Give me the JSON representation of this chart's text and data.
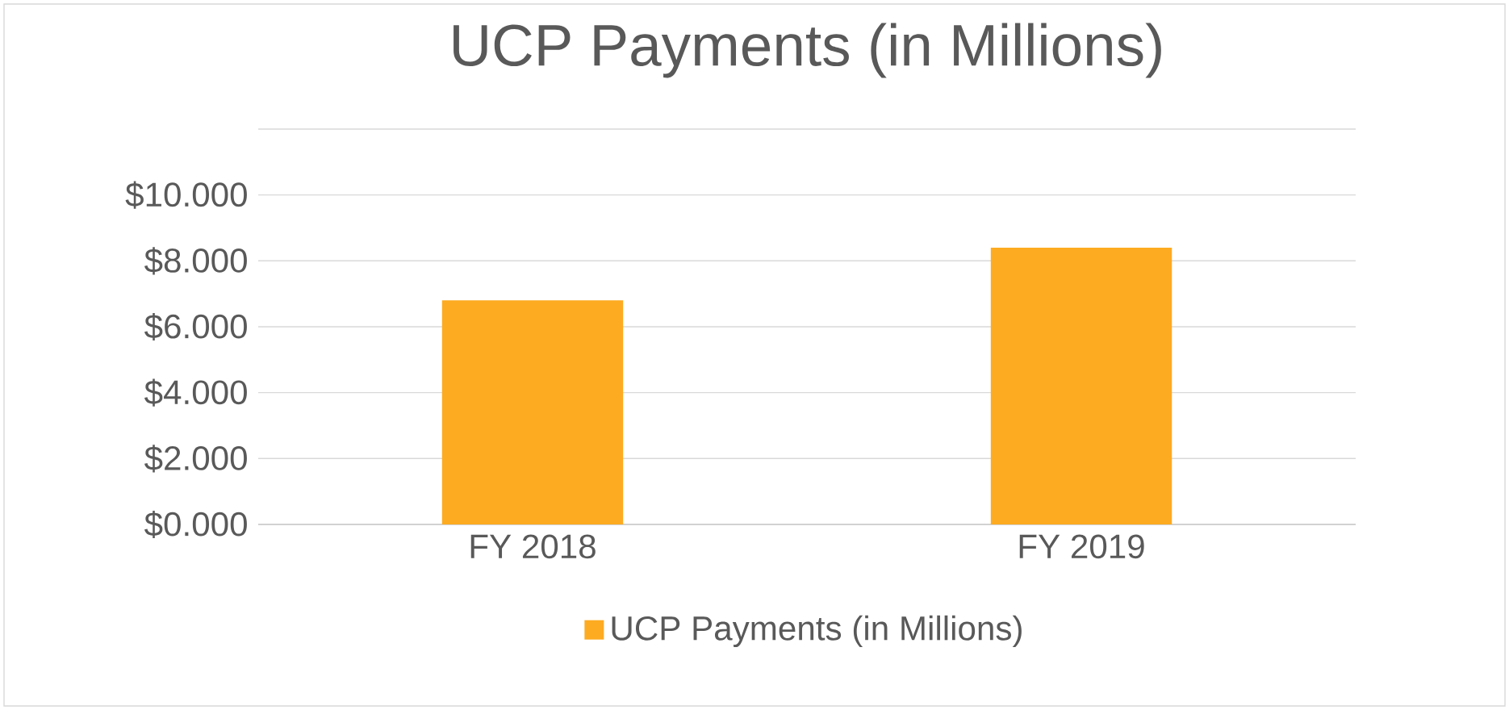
{
  "chart_data": {
    "type": "bar",
    "title": "UCP Payments (in Millions)",
    "categories": [
      "FY 2018",
      "FY 2019"
    ],
    "series": [
      {
        "name": "UCP Payments (in Millions)",
        "color": "#fdab21",
        "values": [
          6.8,
          8.4
        ]
      }
    ],
    "ylim": [
      0,
      12
    ],
    "yticks": [
      {
        "value": 0,
        "label": "$0.000"
      },
      {
        "value": 2,
        "label": "$2.000"
      },
      {
        "value": 4,
        "label": "$4.000"
      },
      {
        "value": 6,
        "label": "$6.000"
      },
      {
        "value": 8,
        "label": "$8.000"
      },
      {
        "value": 10,
        "label": "$10.000"
      },
      {
        "value": 12,
        "label": null
      }
    ],
    "grid": "y",
    "legend": "bottom"
  }
}
